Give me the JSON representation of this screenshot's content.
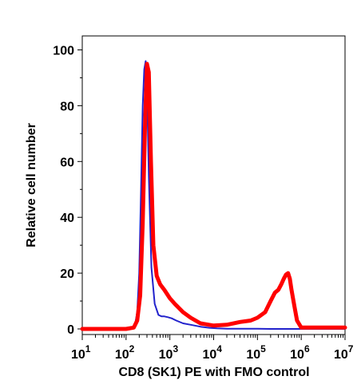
{
  "chart_data": {
    "type": "line",
    "title": "",
    "xlabel": "CD8 (SK1) PE with FMO control",
    "ylabel": "Relative cell number",
    "x_scale": "log10",
    "xlim": [
      10,
      10000000
    ],
    "ylim": [
      -2,
      105
    ],
    "y_ticks": [
      0,
      20,
      40,
      60,
      80,
      100
    ],
    "x_ticks": [
      {
        "base": "10",
        "exp": "1",
        "value": 10
      },
      {
        "base": "10",
        "exp": "2",
        "value": 100
      },
      {
        "base": "10",
        "exp": "3",
        "value": 1000
      },
      {
        "base": "10",
        "exp": "4",
        "value": 10000
      },
      {
        "base": "10",
        "exp": "5",
        "value": 100000
      },
      {
        "base": "10",
        "exp": "6",
        "value": 1000000
      },
      {
        "base": "10",
        "exp": "7",
        "value": 10000000
      }
    ],
    "grid": false,
    "series": [
      {
        "color": "#2222cc",
        "line": "thin",
        "x": [
          10,
          60,
          100,
          140,
          160,
          180,
          200,
          220,
          240,
          260,
          280,
          300,
          330,
          380,
          450,
          550,
          650,
          750,
          900,
          1100,
          1400,
          2000,
          3000,
          5000,
          8000,
          12000,
          20000,
          50000,
          100000,
          200000,
          500000,
          1000000,
          10000000
        ],
        "y": [
          0,
          0,
          0,
          0.2,
          1.5,
          6,
          20,
          50,
          80,
          93,
          96,
          88,
          55,
          22,
          9,
          5,
          4.5,
          4.5,
          4.2,
          3.8,
          3,
          2,
          1.5,
          0.8,
          0.4,
          0.2,
          0.1,
          0.1,
          0.1,
          0,
          0,
          0,
          0
        ]
      },
      {
        "color": "#ff0000",
        "line": "thick",
        "x": [
          10,
          60,
          100,
          150,
          180,
          210,
          240,
          270,
          300,
          330,
          370,
          420,
          500,
          600,
          750,
          1000,
          1300,
          2000,
          3000,
          5000,
          10000,
          20000,
          40000,
          70000,
          100000,
          150000,
          200000,
          250000,
          300000,
          350000,
          400000,
          450000,
          500000,
          550000,
          600000,
          700000,
          800000,
          1000000,
          10000000
        ],
        "y": [
          0,
          0,
          0,
          0.5,
          3,
          12,
          38,
          72,
          95,
          92,
          60,
          30,
          19,
          16,
          14,
          11,
          9,
          6,
          4,
          2,
          1.2,
          1.5,
          2.5,
          3,
          4,
          6,
          10,
          13,
          14,
          16,
          18,
          19.5,
          20,
          18,
          14,
          8,
          3,
          0.5,
          0.5
        ]
      }
    ]
  }
}
